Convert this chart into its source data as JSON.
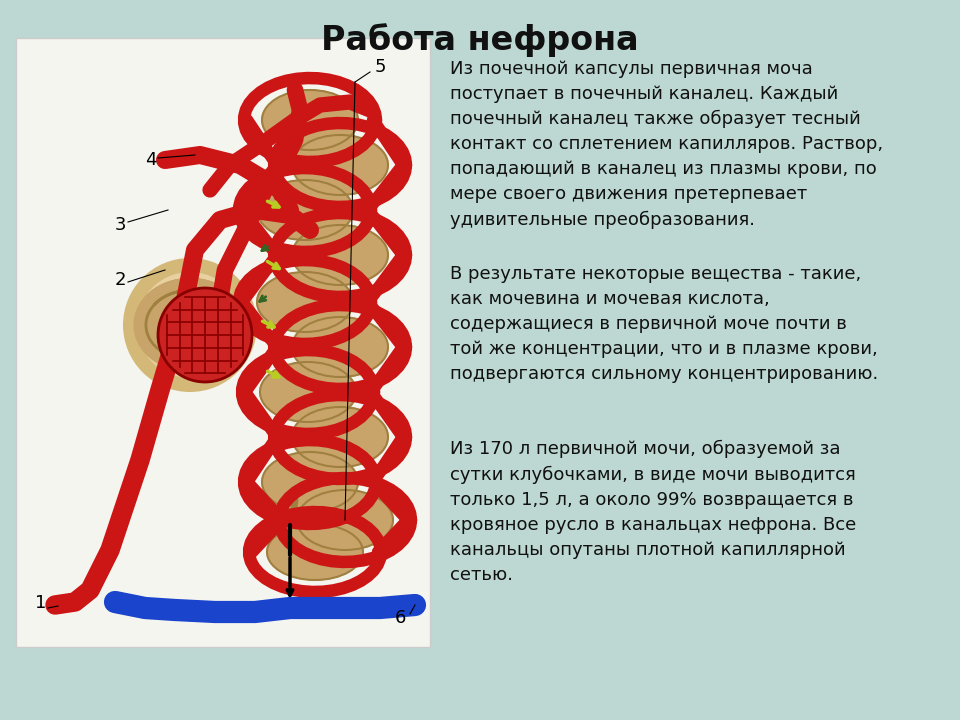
{
  "title": "Работа нефрона",
  "title_fontsize": 24,
  "title_fontweight": "bold",
  "background_color": "#bdd8d2",
  "text_color": "#111111",
  "box_color": "#f5f5f0",
  "box_edge": "#cccccc",
  "paragraph1": "Из почечной капсулы первичная моча\nпоступает в почечный каналец. Каждый\nпочечный каналец также образует тесный\nконтакт со сплетением капилляров. Раствор,\nпопадающий в каналец из плазмы крови, по\nмере своего движения претерпевает\nудивительные преобразования.",
  "paragraph2": "В результате некоторые вещества - такие,\nкак мочевина и мочевая кислота,\nсодержащиеся в первичной моче почти в\nтой же концентрации, что и в плазме крови,\nподвергаются сильному концентрированию.",
  "paragraph3": "Из 170 л первичной мочи, образуемой за\nсутки клубочками, в виде мочи выводится\nтолько 1,5 л, а около 99% возвращается в\nкровяное русло в канальцах нефрона. Все\nканальцы опутаны плотной капиллярной\nсетью.",
  "text_fontsize": 13,
  "label_fontsize": 13,
  "red_color": "#cc1515",
  "blue_color": "#1a44cc",
  "tan_color": "#c8a46a",
  "tan_dark": "#a08040",
  "yellow_green": "#b8cc22",
  "dark_green": "#336622"
}
